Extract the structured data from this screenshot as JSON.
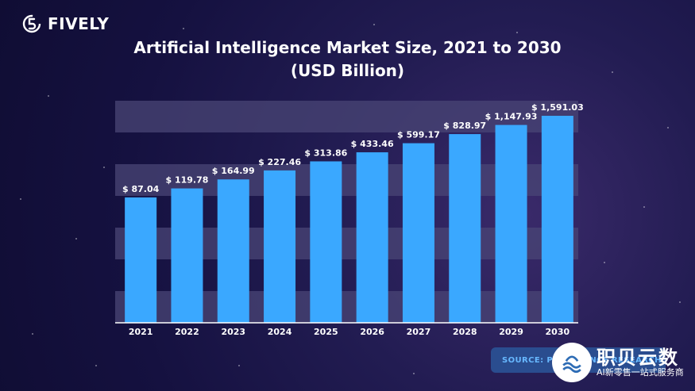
{
  "brand": {
    "name": "FIVELY"
  },
  "chart_data": {
    "type": "bar",
    "title_line1": "Artificial Intelligence Market Size, 2021 to 2030",
    "title_line2": "(USD Billion)",
    "categories": [
      "2021",
      "2022",
      "2023",
      "2024",
      "2025",
      "2026",
      "2027",
      "2028",
      "2029",
      "2030"
    ],
    "values": [
      87.04,
      119.78,
      164.99,
      227.46,
      313.86,
      433.46,
      599.17,
      828.97,
      1147.93,
      1591.03
    ],
    "value_labels": [
      "$ 87.04",
      "$ 119.78",
      "$ 164.99",
      "$ 227.46",
      "$ 313.86",
      "$ 433.46",
      "$ 599.17",
      "$ 828.97",
      "$ 1,147.93",
      "$ 1,591.03"
    ],
    "bar_scale": "log",
    "ylim": [
      1,
      1591.03
    ],
    "xlabel": "",
    "ylabel": "",
    "legend": "none",
    "grid": "horizontal bands",
    "bar_color": "#3aa8ff",
    "band_color": "#4a4575"
  },
  "source": {
    "text": "SOURCE: PRECEDENCE RESEARCH"
  },
  "watermark": {
    "title": "职贝云数",
    "subtitle": "AI新零售一站式服务商"
  }
}
